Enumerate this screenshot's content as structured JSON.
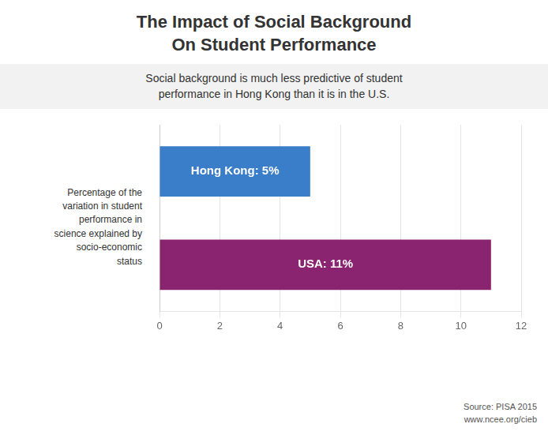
{
  "chart_data": {
    "type": "bar",
    "orientation": "horizontal",
    "title": "The Impact of Social Background\nOn Student Performance",
    "subtitle": "Social background is much less predictive of student\n  performance in Hong Kong than it is in the U.S.",
    "ylabel": "Percentage of the\nvariation in student\nperformance in\nscience explained by\nsocio-economic\nstatus",
    "categories": [
      "USA",
      "Hong Kong"
    ],
    "values": [
      11,
      5
    ],
    "colors": [
      "#8B2470",
      "#3A7DC9"
    ],
    "data_labels": true,
    "value_labels": [
      "USA: 11%",
      "Hong Kong: 5%"
    ],
    "xlim": [
      0,
      12
    ],
    "xticks": [
      0,
      2,
      4,
      6,
      8,
      10,
      12
    ],
    "grid": true,
    "tick_labels": "x",
    "annotations": [
      "Source: PISA 2015\nwww.ncee.org/cieb"
    ]
  }
}
